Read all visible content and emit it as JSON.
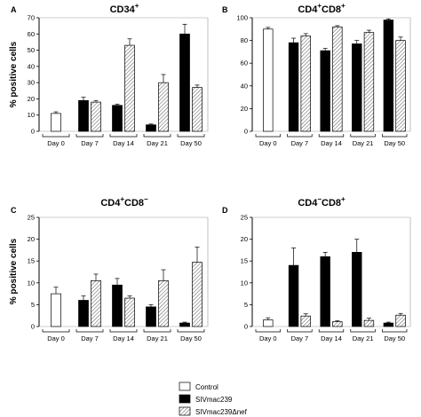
{
  "ylabel": "% positive cells",
  "legend": [
    {
      "label": "Control",
      "style": "white"
    },
    {
      "label": "SIVmac239",
      "style": "black"
    },
    {
      "label": "SIVmac239Δnef",
      "style": "hatch"
    }
  ],
  "chart_data": [
    {
      "type": "bar",
      "panel": "A",
      "title": "CD34",
      "title_sup": "+",
      "categories": [
        "Day 0",
        "Day 7",
        "Day 14",
        "Day 21",
        "Day 50"
      ],
      "ylim": [
        0,
        70
      ],
      "yticks": [
        0,
        10,
        20,
        30,
        40,
        50,
        60,
        70
      ],
      "series": [
        {
          "name": "Control",
          "values": [
            11,
            null,
            null,
            null,
            null
          ],
          "errors": [
            1,
            null,
            null,
            null,
            null
          ]
        },
        {
          "name": "SIVmac239",
          "values": [
            null,
            19,
            16,
            4,
            60
          ],
          "errors": [
            null,
            2,
            0.8,
            0.5,
            6
          ]
        },
        {
          "name": "SIVmac239Δnef",
          "values": [
            null,
            18,
            53,
            30,
            27
          ],
          "errors": [
            null,
            1,
            4,
            5,
            1.5
          ]
        }
      ]
    },
    {
      "type": "bar",
      "panel": "B",
      "title": "CD4+CD8+",
      "categories": [
        "Day 0",
        "Day 7",
        "Day 14",
        "Day 21",
        "Day 50"
      ],
      "ylim": [
        0,
        100
      ],
      "yticks": [
        0,
        20,
        40,
        60,
        80,
        100
      ],
      "series": [
        {
          "name": "Control",
          "values": [
            90,
            null,
            null,
            null,
            null
          ],
          "errors": [
            1.5,
            null,
            null,
            null,
            null
          ]
        },
        {
          "name": "SIVmac239",
          "values": [
            null,
            78,
            71,
            77,
            98
          ],
          "errors": [
            null,
            4,
            2,
            3,
            1
          ]
        },
        {
          "name": "SIVmac239Δnef",
          "values": [
            null,
            84,
            92,
            87,
            80
          ],
          "errors": [
            null,
            2,
            1,
            2,
            3
          ]
        }
      ]
    },
    {
      "type": "bar",
      "panel": "C",
      "title": "CD4+CD8-",
      "categories": [
        "Day 0",
        "Day 7",
        "Day 14",
        "Day 21",
        "Day 50"
      ],
      "ylim": [
        0,
        25
      ],
      "yticks": [
        0,
        5,
        10,
        15,
        20,
        25
      ],
      "series": [
        {
          "name": "Control",
          "values": [
            7.5,
            null,
            null,
            null,
            null
          ],
          "errors": [
            1.5,
            null,
            null,
            null,
            null
          ]
        },
        {
          "name": "SIVmac239",
          "values": [
            null,
            6,
            9.5,
            4.5,
            0.8
          ],
          "errors": [
            null,
            1,
            1.5,
            0.5,
            0.2
          ]
        },
        {
          "name": "SIVmac239Δnef",
          "values": [
            null,
            10.5,
            6.5,
            10.5,
            14.7
          ],
          "errors": [
            null,
            1.5,
            0.5,
            2.5,
            3.5
          ]
        }
      ]
    },
    {
      "type": "bar",
      "panel": "D",
      "title": "CD4-CD8+",
      "categories": [
        "Day 0",
        "Day 7",
        "Day 14",
        "Day 21",
        "Day 50"
      ],
      "ylim": [
        0,
        25
      ],
      "yticks": [
        0,
        5,
        10,
        15,
        20,
        25
      ],
      "series": [
        {
          "name": "Control",
          "values": [
            1.5,
            null,
            null,
            null,
            null
          ],
          "errors": [
            0.5,
            null,
            null,
            null,
            null
          ]
        },
        {
          "name": "SIVmac239",
          "values": [
            null,
            14,
            16,
            17,
            0.8
          ],
          "errors": [
            null,
            4,
            1,
            3,
            0.2
          ]
        },
        {
          "name": "SIVmac239Δnef",
          "values": [
            null,
            2.4,
            1.1,
            1.4,
            2.6
          ],
          "errors": [
            null,
            0.5,
            0.2,
            0.5,
            0.4
          ]
        }
      ]
    }
  ]
}
